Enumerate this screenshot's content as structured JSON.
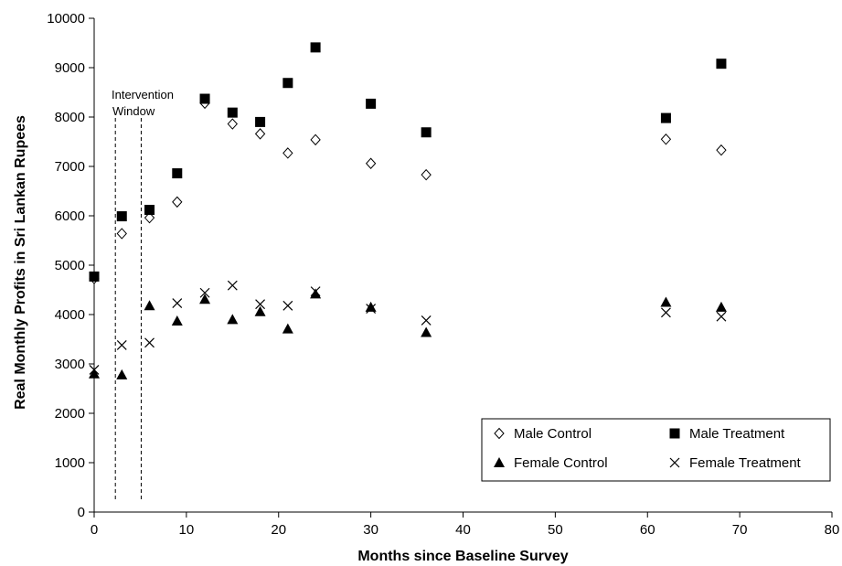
{
  "chart_data": {
    "type": "scatter",
    "title": "",
    "xlabel": "Months since Baseline Survey",
    "ylabel": "Real Monthly Profits  in Sri Lankan Rupees",
    "xlim": [
      0,
      80
    ],
    "ylim": [
      0,
      10000
    ],
    "x_ticks": [
      "0",
      "10",
      "20",
      "30",
      "40",
      "50",
      "60",
      "70",
      "80"
    ],
    "y_ticks": [
      "0",
      "1000",
      "2000",
      "3000",
      "4000",
      "5000",
      "6000",
      "7000",
      "8000",
      "9000",
      "10000"
    ],
    "grid": false,
    "legend_position": "bottom-right",
    "annotations": [
      {
        "text_lines": [
          "Intervention",
          "Window"
        ],
        "x_start": 2.3,
        "x_end": 5.1
      }
    ],
    "series": [
      {
        "name": "Male Control",
        "marker": "diamond-open",
        "x": [
          0,
          3,
          6,
          9,
          12,
          15,
          18,
          21,
          24,
          30,
          36,
          62,
          68
        ],
        "y": [
          4730,
          5640,
          5960,
          6280,
          8280,
          7860,
          7660,
          7270,
          7540,
          7060,
          6830,
          7550,
          7330
        ]
      },
      {
        "name": "Male Treatment",
        "marker": "square-filled",
        "x": [
          0,
          3,
          6,
          9,
          12,
          15,
          18,
          21,
          24,
          30,
          36,
          62,
          68
        ],
        "y": [
          4770,
          5990,
          6120,
          6860,
          8370,
          8090,
          7900,
          8690,
          9410,
          8270,
          7690,
          7980,
          9080
        ]
      },
      {
        "name": "Female Control",
        "marker": "triangle-filled",
        "x": [
          0,
          3,
          6,
          9,
          12,
          15,
          18,
          21,
          24,
          30,
          36,
          62,
          68
        ],
        "y": [
          2800,
          2780,
          4180,
          3870,
          4310,
          3900,
          4060,
          3710,
          4420,
          4150,
          3640,
          4250,
          4150
        ]
      },
      {
        "name": "Female Treatment",
        "marker": "x",
        "x": [
          0,
          3,
          6,
          9,
          12,
          15,
          18,
          21,
          24,
          30,
          36,
          62,
          68
        ],
        "y": [
          2880,
          3380,
          3430,
          4230,
          4440,
          4590,
          4210,
          4180,
          4470,
          4120,
          3880,
          4040,
          3960
        ]
      }
    ]
  }
}
